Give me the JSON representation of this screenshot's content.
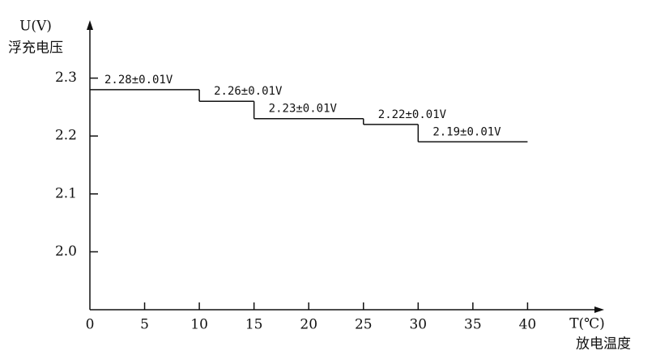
{
  "chart_data": {
    "type": "step",
    "ylabel": "U(V)",
    "ylabel_name": "浮充电压",
    "xlabel": "T(℃)",
    "xlabel_name": "放电温度",
    "x": [
      0,
      10,
      15,
      25,
      30
    ],
    "x_end": [
      10,
      15,
      25,
      30,
      40
    ],
    "values": [
      2.28,
      2.26,
      2.23,
      2.22,
      2.19
    ],
    "value_labels": [
      "2.28±0.01V",
      "2.26±0.01V",
      "2.23±0.01V",
      "2.22±0.01V",
      "2.19±0.01V"
    ],
    "color": "#111111",
    "xlim": [
      0,
      47
    ],
    "xticks": [
      0,
      5,
      10,
      15,
      20,
      25,
      30,
      35,
      40
    ],
    "ylim": [
      1.9,
      2.4
    ],
    "yticks": [
      {
        "value": 2,
        "label": "2.0"
      },
      2.1,
      2.2,
      2.3
    ]
  }
}
